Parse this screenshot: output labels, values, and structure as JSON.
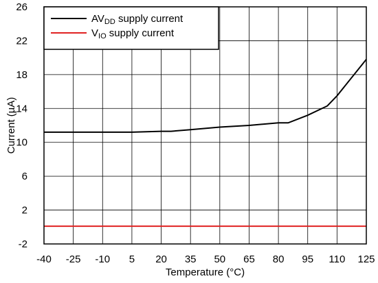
{
  "chart_data": {
    "type": "line",
    "title": "",
    "xlabel": "Temperature (°C)",
    "ylabel": "Current (µA)",
    "xlim": [
      -40,
      125
    ],
    "ylim": [
      -2,
      26
    ],
    "x_ticks": [
      "-40",
      "-25",
      "-10",
      "5",
      "20",
      "35",
      "50",
      "65",
      "80",
      "95",
      "110",
      "125"
    ],
    "y_ticks": [
      "-2",
      "2",
      "6",
      "10",
      "14",
      "18",
      "22",
      "26"
    ],
    "grid": true,
    "legend_position": "top-left",
    "series": [
      {
        "name_main": "AV",
        "name_sub": "DD",
        "name_rest": " supply current",
        "color": "#000000",
        "x": [
          -40,
          -25,
          -10,
          5,
          20,
          25,
          35,
          50,
          65,
          80,
          85,
          95,
          105,
          110,
          125
        ],
        "y": [
          11.2,
          11.2,
          11.2,
          11.2,
          11.3,
          11.3,
          11.5,
          11.8,
          12.0,
          12.3,
          12.3,
          13.2,
          14.3,
          15.5,
          19.8
        ]
      },
      {
        "name_main": "V",
        "name_sub": "IO",
        "name_rest": " supply current",
        "color": "#e02020",
        "x": [
          -40,
          125
        ],
        "y": [
          0.1,
          0.1
        ]
      }
    ]
  }
}
